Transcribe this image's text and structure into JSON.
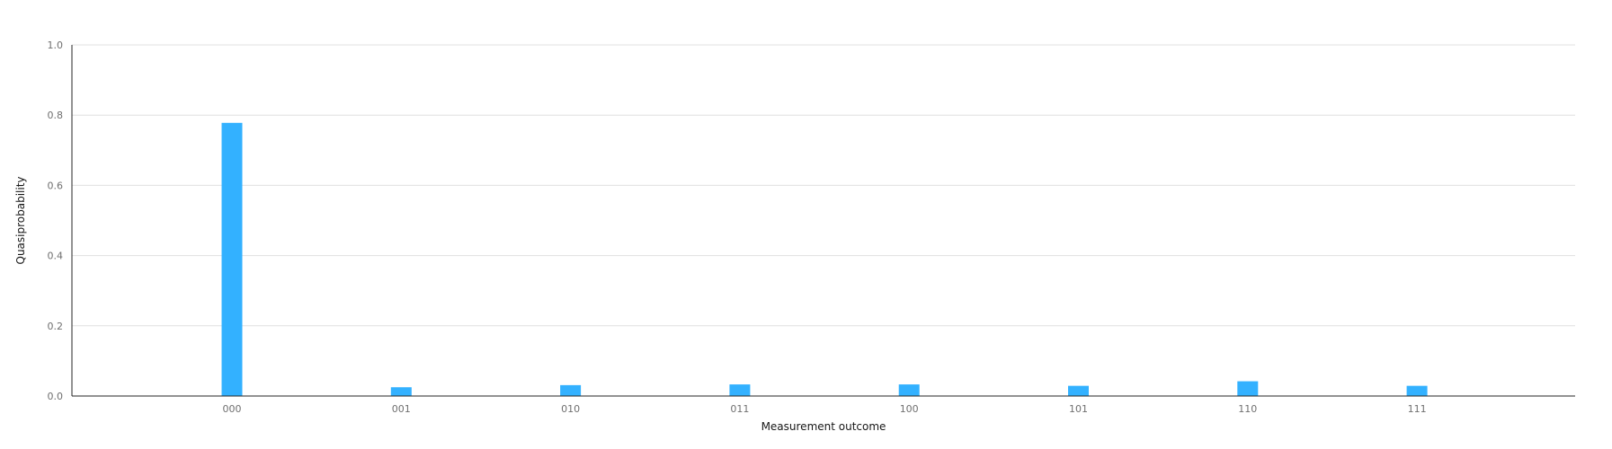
{
  "chart_data": {
    "type": "bar",
    "title": "",
    "xlabel": "Measurement outcome",
    "ylabel": "Quasiprobability",
    "categories": [
      "000",
      "001",
      "010",
      "011",
      "100",
      "101",
      "110",
      "111"
    ],
    "values": [
      0.778,
      0.025,
      0.031,
      0.033,
      0.033,
      0.029,
      0.042,
      0.029
    ],
    "ylim": [
      0,
      1.0
    ],
    "yticks": [
      "0.0",
      "0.2",
      "0.4",
      "0.6",
      "0.8",
      "1.0"
    ],
    "grid": true,
    "legend": "none",
    "bar_color": "#33b1ff"
  }
}
